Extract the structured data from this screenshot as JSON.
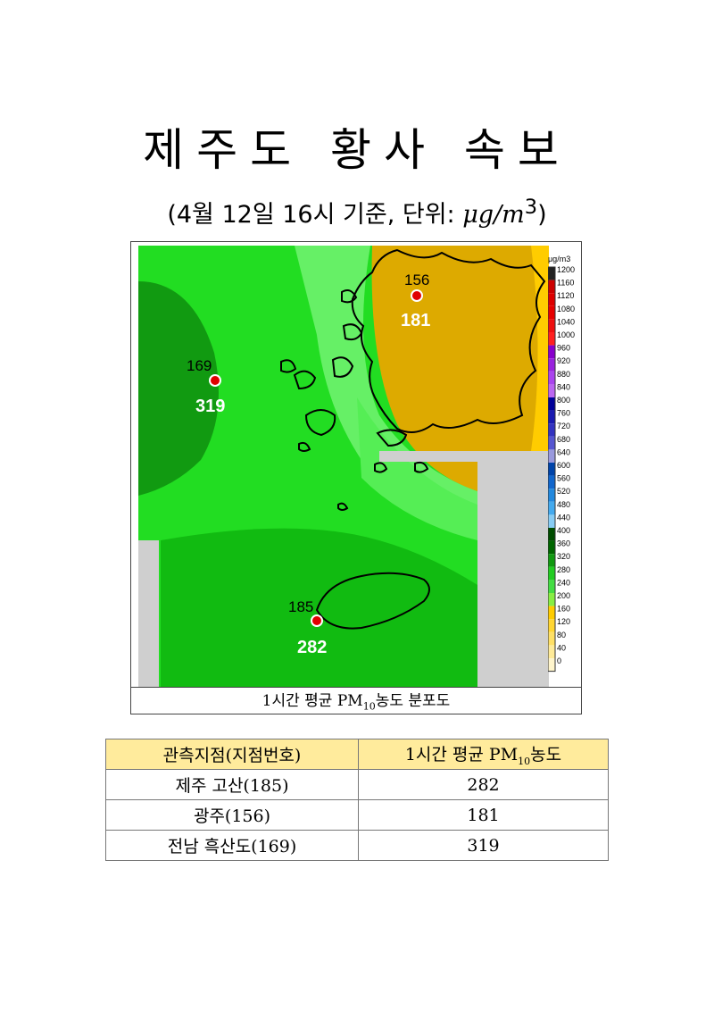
{
  "title": "제주도 황사 속보",
  "subtitle": {
    "prefix": "(4월 12일 16시 기준, 단위: ",
    "unit": "μg/m",
    "unit_sup": "3",
    "suffix": ")"
  },
  "figure": {
    "caption_prefix": "1시간 평균 PM",
    "caption_sub": "10",
    "caption_suffix": "농도 분포도",
    "colorbar": {
      "unit": "μg/m3",
      "ticks": [
        "1200",
        "1160",
        "1120",
        "1080",
        "1040",
        "1000",
        "960",
        "920",
        "880",
        "840",
        "800",
        "760",
        "720",
        "680",
        "640",
        "600",
        "560",
        "520",
        "480",
        "440",
        "400",
        "360",
        "320",
        "280",
        "240",
        "200",
        "160",
        "120",
        "80",
        "40",
        "0"
      ],
      "colors": [
        "#222222",
        "#cc0000",
        "#dd0000",
        "#e60000",
        "#ee1010",
        "#ff2020",
        "#8800cc",
        "#9922dd",
        "#aa44ee",
        "#bb66f0",
        "#000099",
        "#1a1ab0",
        "#3333c0",
        "#5555d0",
        "#9999dd",
        "#0044aa",
        "#1166cc",
        "#2288dd",
        "#44aaee",
        "#88ccf4",
        "#004d00",
        "#006600",
        "#119911",
        "#22cc22",
        "#44dd44",
        "#88ee44",
        "#ffcc00",
        "#ffd633",
        "#ffe066",
        "#ffeb99",
        "#fff5cc"
      ]
    },
    "markers": [
      {
        "code": "156",
        "value": "181"
      },
      {
        "code": "169",
        "value": "319"
      },
      {
        "code": "185",
        "value": "282"
      }
    ]
  },
  "table": {
    "headers": {
      "station": "관측지점(지점번호)",
      "value_prefix": "1시간 평균 PM",
      "value_sub": "10",
      "value_suffix": "농도"
    },
    "rows": [
      {
        "station": "제주 고산(185)",
        "value": "282"
      },
      {
        "station": "광주(156)",
        "value": "181"
      },
      {
        "station": "전남 흑산도(169)",
        "value": "319"
      }
    ]
  }
}
